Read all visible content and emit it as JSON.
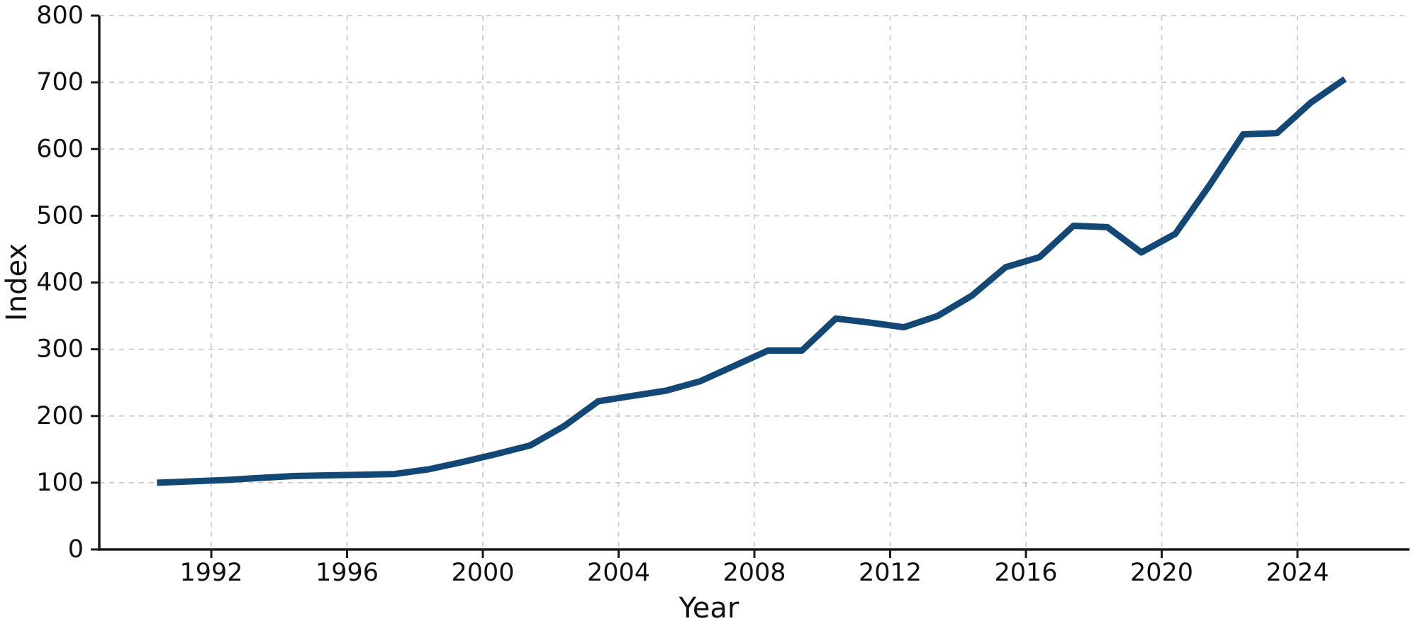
{
  "figure": {
    "background_color": "#ffffff",
    "text_color": "#111111",
    "grid_color": "#c9c9c9",
    "spine_color": "#1a1a1a"
  },
  "chart_data": {
    "type": "line",
    "title": "",
    "xlabel": "Year",
    "ylabel": "Index",
    "x": [
      1990,
      1991,
      1992,
      1993,
      1994,
      1995,
      1996,
      1997,
      1998,
      1999,
      2000,
      2001,
      2002,
      2003,
      2004,
      2005,
      2006,
      2007,
      2008,
      2009,
      2010,
      2011,
      2012,
      2013,
      2014,
      2015,
      2016,
      2017,
      2018,
      2019,
      2020,
      2021,
      2022,
      2023,
      2024,
      2025
    ],
    "series": [
      {
        "name": "Index",
        "values": [
          100,
          102,
          104,
          107,
          110,
          111,
          112,
          113,
          120,
          131,
          143,
          156,
          185,
          222,
          230,
          238,
          252,
          275,
          298,
          298,
          346,
          340,
          333,
          350,
          380,
          423,
          438,
          485,
          483,
          445,
          473,
          545,
          622,
          624,
          670,
          705
        ]
      }
    ],
    "x_tick_labels": [
      "1992",
      "1996",
      "2000",
      "2004",
      "2008",
      "2012",
      "2016",
      "2020",
      "2024"
    ],
    "y_tick_labels": [
      "0",
      "100",
      "200",
      "300",
      "400",
      "500",
      "600",
      "700",
      "800"
    ],
    "x_ticks": [
      1992,
      1996,
      2000,
      2004,
      2008,
      2012,
      2016,
      2020,
      2024
    ],
    "y_ticks": [
      0,
      100,
      200,
      300,
      400,
      500,
      600,
      700,
      800
    ],
    "xlim": [
      1988.7,
      2027.3
    ],
    "ylim": [
      0,
      800
    ],
    "grid": true,
    "grid_style": "dashed",
    "legend": false,
    "line_color": "#134876",
    "line_width": 9
  }
}
